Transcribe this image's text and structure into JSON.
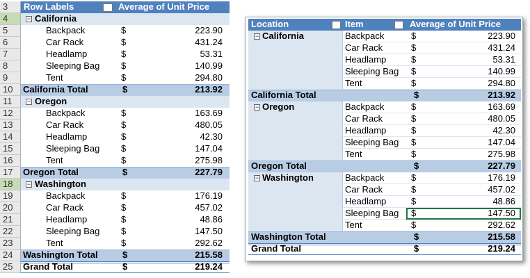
{
  "left": {
    "row_numbers": [
      "3",
      "4",
      "5",
      "6",
      "7",
      "8",
      "9",
      "10",
      "11",
      "12",
      "13",
      "14",
      "15",
      "16",
      "17",
      "18",
      "19",
      "20",
      "21",
      "22",
      "23",
      "24",
      "25"
    ],
    "header": [
      "Row Labels",
      "Average of Unit Price"
    ],
    "groups": [
      {
        "name": "California",
        "items": [
          {
            "name": "Backpack",
            "currency": "$",
            "value": "223.90"
          },
          {
            "name": "Car Rack",
            "currency": "$",
            "value": "431.24"
          },
          {
            "name": "Headlamp",
            "currency": "$",
            "value": "53.31"
          },
          {
            "name": "Sleeping Bag",
            "currency": "$",
            "value": "140.99"
          },
          {
            "name": "Tent",
            "currency": "$",
            "value": "294.80"
          }
        ],
        "total": {
          "label": "California Total",
          "currency": "$",
          "value": "213.92"
        }
      },
      {
        "name": "Oregon",
        "items": [
          {
            "name": "Backpack",
            "currency": "$",
            "value": "163.69"
          },
          {
            "name": "Car Rack",
            "currency": "$",
            "value": "480.05"
          },
          {
            "name": "Headlamp",
            "currency": "$",
            "value": "42.30"
          },
          {
            "name": "Sleeping Bag",
            "currency": "$",
            "value": "147.04"
          },
          {
            "name": "Tent",
            "currency": "$",
            "value": "275.98"
          }
        ],
        "total": {
          "label": "Oregon Total",
          "currency": "$",
          "value": "227.79"
        }
      },
      {
        "name": "Washington",
        "items": [
          {
            "name": "Backpack",
            "currency": "$",
            "value": "176.19"
          },
          {
            "name": "Car Rack",
            "currency": "$",
            "value": "457.02"
          },
          {
            "name": "Headlamp",
            "currency": "$",
            "value": "48.86"
          },
          {
            "name": "Sleeping Bag",
            "currency": "$",
            "value": "147.50"
          },
          {
            "name": "Tent",
            "currency": "$",
            "value": "292.62"
          }
        ],
        "total": {
          "label": "Washington Total",
          "currency": "$",
          "value": "215.58"
        }
      }
    ],
    "grand_total": {
      "label": "Grand Total",
      "currency": "$",
      "value": "219.24"
    }
  },
  "right": {
    "header": [
      "Location",
      "Item",
      "Average of Unit Price"
    ],
    "groups": [
      {
        "name": "California",
        "items": [
          {
            "name": "Backpack",
            "currency": "$",
            "value": "223.90"
          },
          {
            "name": "Car Rack",
            "currency": "$",
            "value": "431.24"
          },
          {
            "name": "Headlamp",
            "currency": "$",
            "value": "53.31"
          },
          {
            "name": "Sleeping Bag",
            "currency": "$",
            "value": "140.99"
          },
          {
            "name": "Tent",
            "currency": "$",
            "value": "294.80"
          }
        ],
        "total": {
          "label": "California Total",
          "currency": "$",
          "value": "213.92"
        }
      },
      {
        "name": "Oregon",
        "items": [
          {
            "name": "Backpack",
            "currency": "$",
            "value": "163.69"
          },
          {
            "name": "Car Rack",
            "currency": "$",
            "value": "480.05"
          },
          {
            "name": "Headlamp",
            "currency": "$",
            "value": "42.30"
          },
          {
            "name": "Sleeping Bag",
            "currency": "$",
            "value": "147.04"
          },
          {
            "name": "Tent",
            "currency": "$",
            "value": "275.98"
          }
        ],
        "total": {
          "label": "Oregon Total",
          "currency": "$",
          "value": "227.79"
        }
      },
      {
        "name": "Washington",
        "items": [
          {
            "name": "Backpack",
            "currency": "$",
            "value": "176.19"
          },
          {
            "name": "Car Rack",
            "currency": "$",
            "value": "457.02"
          },
          {
            "name": "Headlamp",
            "currency": "$",
            "value": "48.86"
          },
          {
            "name": "Sleeping Bag",
            "currency": "$",
            "value": "147.50"
          },
          {
            "name": "Tent",
            "currency": "$",
            "value": "292.62"
          }
        ],
        "total": {
          "label": "Washington Total",
          "currency": "$",
          "value": "215.58"
        }
      }
    ],
    "grand_total": {
      "label": "Grand Total",
      "currency": "$",
      "value": "219.24"
    }
  }
}
